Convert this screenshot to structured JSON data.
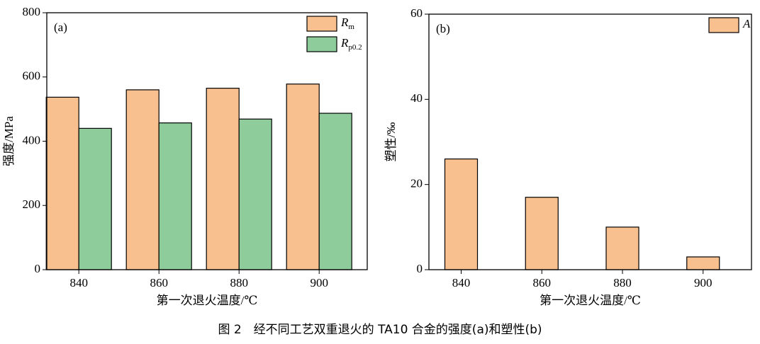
{
  "chart_data": [
    {
      "type": "bar",
      "panel_label": "(a)",
      "ylabel": "强度/MPa",
      "xlabel": "第一次退火温度/℃",
      "categories": [
        "840",
        "860",
        "880",
        "900"
      ],
      "series": [
        {
          "name": "Rm",
          "color": "#f9c08f",
          "values": [
            537,
            560,
            565,
            578
          ]
        },
        {
          "name": "Rp0.2",
          "color": "#8fcc9b",
          "values": [
            440,
            457,
            469,
            487
          ]
        }
      ],
      "ylim": [
        0,
        800
      ],
      "yticks": [
        0,
        200,
        400,
        600,
        800
      ],
      "legend": "upper right"
    },
    {
      "type": "bar",
      "panel_label": "(b)",
      "ylabel": "塑性/‰",
      "xlabel": "第一次退火温度/℃",
      "categories": [
        "840",
        "860",
        "880",
        "900"
      ],
      "series": [
        {
          "name": "A",
          "color": "#f9c08f",
          "values": [
            26,
            17,
            10,
            3
          ]
        }
      ],
      "ylim": [
        0,
        60
      ],
      "yticks": [
        0,
        20,
        40,
        60
      ],
      "legend": "upper right"
    }
  ],
  "caption": "图 2　经不同工艺双重退火的 TA10 合金的强度(a)和塑性(b)"
}
